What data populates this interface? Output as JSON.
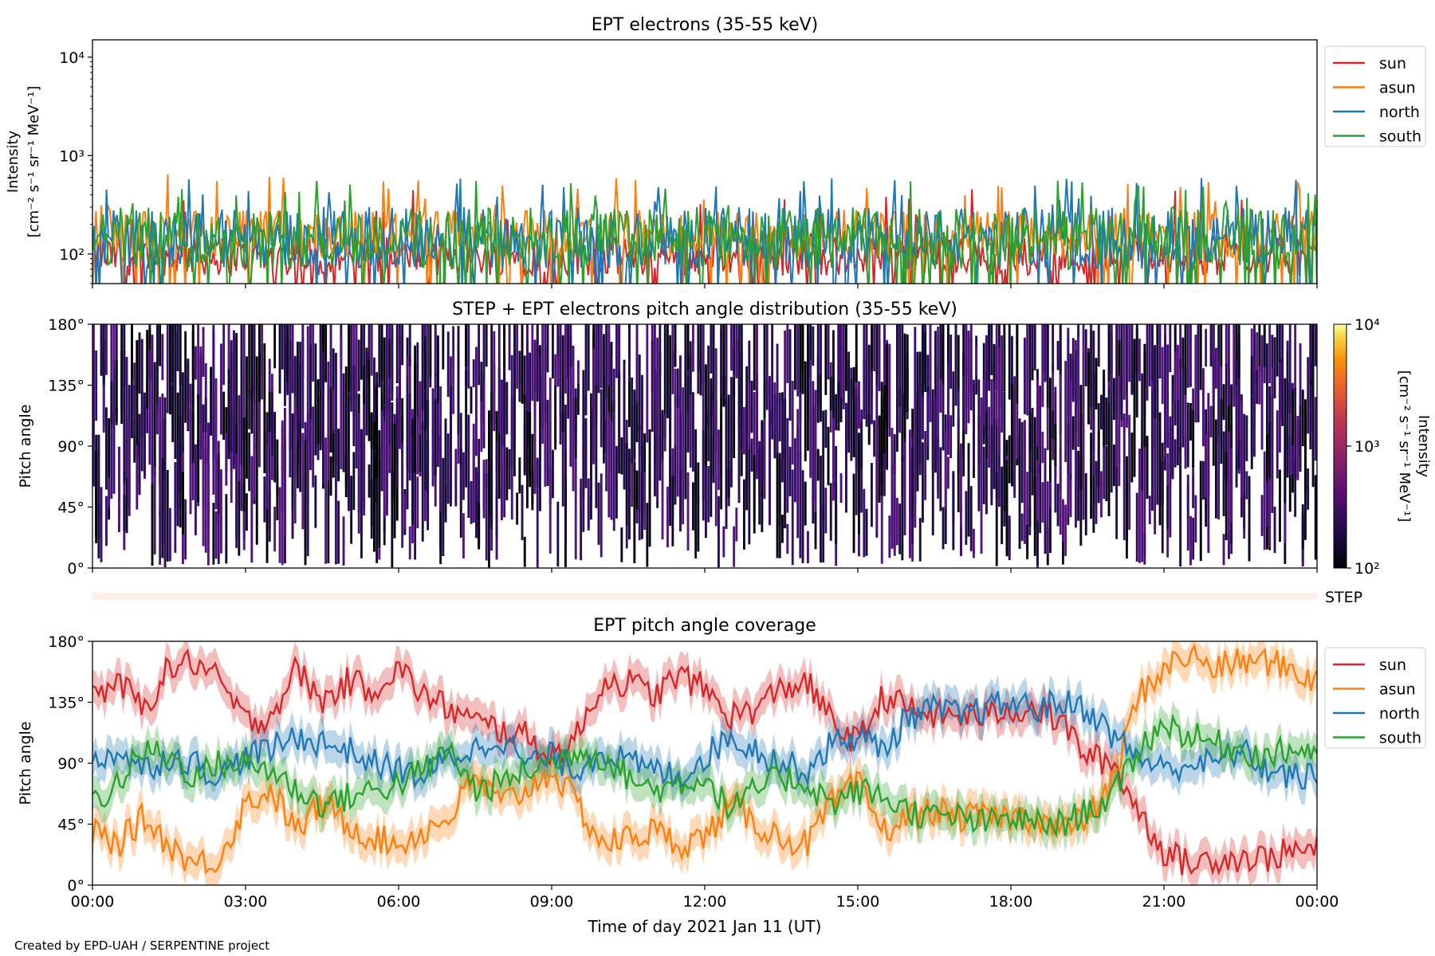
{
  "credit": "Created by EPD-UAH / SERPENTINE project",
  "colors": {
    "sun": "#d62728",
    "asun": "#ff7f0e",
    "north": "#1f77b4",
    "south": "#2ca02c"
  },
  "chart_data": [
    {
      "type": "line",
      "title": "EPT electrons (35-55 keV)",
      "ylabel": [
        "Intensity",
        "[cm⁻² s⁻¹ sr⁻¹ MeV⁻¹]"
      ],
      "yscale": "log",
      "ylim": [
        50,
        15000
      ],
      "yticks": [
        {
          "v": 100,
          "label": "10²"
        },
        {
          "v": 1000,
          "label": "10³"
        },
        {
          "v": 10000,
          "label": "10⁴"
        }
      ],
      "x_range_hours": [
        0,
        24
      ],
      "legend_placement": "outside-right-top",
      "series": [
        {
          "name": "sun",
          "key": "sun",
          "typical": [
            60,
            150
          ],
          "peak": 480
        },
        {
          "name": "asun",
          "key": "asun",
          "typical": [
            90,
            280
          ],
          "peak": 650
        },
        {
          "name": "north",
          "key": "north",
          "typical": [
            70,
            300
          ],
          "peak": 600
        },
        {
          "name": "south",
          "key": "south",
          "typical": [
            70,
            300
          ],
          "peak": 560
        }
      ]
    },
    {
      "type": "heatmap",
      "title": "STEP + EPT electrons pitch angle distribution (35-55 keV)",
      "ylabel": "Pitch angle",
      "ylim": [
        0,
        180
      ],
      "yticks": [
        {
          "v": 0,
          "label": "0°"
        },
        {
          "v": 45,
          "label": "45°"
        },
        {
          "v": 90,
          "label": "90°"
        },
        {
          "v": 135,
          "label": "135°"
        },
        {
          "v": 180,
          "label": "180°"
        }
      ],
      "x_range_hours": [
        0,
        24
      ],
      "colorbar": {
        "label": [
          "Intensity",
          "[cm⁻² s⁻¹ sr⁻¹ MeV⁻¹]"
        ],
        "scale": "log",
        "range": [
          100,
          10000
        ],
        "ticks": [
          {
            "v": 100,
            "label": "10²"
          },
          {
            "v": 1000,
            "label": "10³"
          },
          {
            "v": 10000,
            "label": "10⁴"
          }
        ],
        "colormap": "inferno"
      },
      "typical_intensity": [
        100,
        250
      ]
    },
    {
      "type": "bar",
      "label": "STEP"
    },
    {
      "type": "line",
      "title": "EPT pitch angle coverage",
      "ylabel": "Pitch angle",
      "ylim": [
        0,
        180
      ],
      "yticks": [
        {
          "v": 0,
          "label": "0°"
        },
        {
          "v": 45,
          "label": "45°"
        },
        {
          "v": 90,
          "label": "90°"
        },
        {
          "v": 135,
          "label": "135°"
        },
        {
          "v": 180,
          "label": "180°"
        }
      ],
      "xlabel": "Time of day 2021 Jan 11 (UT)",
      "xticks": [
        {
          "h": 0,
          "label": "00:00"
        },
        {
          "h": 3,
          "label": "03:00"
        },
        {
          "h": 6,
          "label": "06:00"
        },
        {
          "h": 9,
          "label": "09:00"
        },
        {
          "h": 12,
          "label": "12:00"
        },
        {
          "h": 15,
          "label": "15:00"
        },
        {
          "h": 18,
          "label": "18:00"
        },
        {
          "h": 21,
          "label": "21:00"
        },
        {
          "h": 24,
          "label": "00:00"
        }
      ],
      "legend_placement": "outside-right-top",
      "band_halfwidth_deg": 12,
      "series": [
        {
          "name": "sun",
          "key": "sun",
          "x": [
            0,
            0.5,
            1,
            1.5,
            2,
            2.5,
            3,
            3.5,
            4,
            4.5,
            5,
            5.5,
            6,
            6.5,
            7,
            7.5,
            8,
            8.5,
            9,
            9.5,
            10,
            10.5,
            11,
            11.5,
            12,
            12.5,
            13,
            13.5,
            14,
            14.5,
            15,
            15.5,
            16,
            16.5,
            17,
            17.5,
            18,
            18.5,
            19,
            19.5,
            20,
            20.5,
            21,
            21.5,
            22,
            22.5,
            23,
            23.5,
            24
          ],
          "y": [
            140,
            150,
            130,
            160,
            165,
            150,
            120,
            125,
            160,
            135,
            150,
            145,
            160,
            140,
            130,
            120,
            115,
            110,
            95,
            110,
            150,
            150,
            140,
            155,
            145,
            125,
            130,
            145,
            150,
            120,
            105,
            140,
            130,
            125,
            125,
            125,
            130,
            130,
            120,
            95,
            90,
            55,
            25,
            15,
            20,
            20,
            20,
            25,
            25
          ]
        },
        {
          "name": "asun",
          "key": "asun",
          "x": [
            0,
            0.5,
            1,
            1.5,
            2,
            2.5,
            3,
            3.5,
            4,
            4.5,
            5,
            5.5,
            6,
            6.5,
            7,
            7.5,
            8,
            8.5,
            9,
            9.5,
            10,
            10.5,
            11,
            11.5,
            12,
            12.5,
            13,
            13.5,
            14,
            14.5,
            15,
            15.5,
            16,
            16.5,
            17,
            17.5,
            18,
            18.5,
            19,
            19.5,
            20,
            20.5,
            21,
            21.5,
            22,
            22.5,
            23,
            23.5,
            24
          ],
          "y": [
            40,
            30,
            50,
            30,
            15,
            20,
            60,
            70,
            40,
            60,
            45,
            35,
            30,
            40,
            50,
            80,
            60,
            70,
            85,
            60,
            30,
            35,
            40,
            30,
            35,
            60,
            45,
            35,
            30,
            60,
            75,
            40,
            50,
            55,
            50,
            50,
            50,
            50,
            40,
            50,
            75,
            140,
            160,
            170,
            160,
            165,
            165,
            160,
            150
          ]
        },
        {
          "name": "north",
          "key": "north",
          "x": [
            0,
            0.5,
            1,
            1.5,
            2,
            2.5,
            3,
            3.5,
            4,
            4.5,
            5,
            5.5,
            6,
            6.5,
            7,
            7.5,
            8,
            8.5,
            9,
            9.5,
            10,
            10.5,
            11,
            11.5,
            12,
            12.5,
            13,
            13.5,
            14,
            14.5,
            15,
            15.5,
            16,
            16.5,
            17,
            17.5,
            18,
            18.5,
            19,
            19.5,
            20,
            20.5,
            21,
            21.5,
            22,
            22.5,
            23,
            23.5,
            24
          ],
          "y": [
            90,
            100,
            85,
            95,
            90,
            80,
            95,
            100,
            110,
            105,
            100,
            90,
            85,
            80,
            95,
            100,
            110,
            90,
            95,
            85,
            100,
            90,
            85,
            80,
            95,
            110,
            100,
            90,
            85,
            105,
            110,
            100,
            125,
            130,
            125,
            130,
            135,
            130,
            135,
            130,
            110,
            95,
            85,
            90,
            90,
            100,
            85,
            80,
            80
          ]
        },
        {
          "name": "south",
          "key": "south",
          "x": [
            0,
            0.5,
            1,
            1.5,
            2,
            2.5,
            3,
            3.5,
            4,
            4.5,
            5,
            5.5,
            6,
            6.5,
            7,
            7.5,
            8,
            8.5,
            9,
            9.5,
            10,
            10.5,
            11,
            11.5,
            12,
            12.5,
            13,
            13.5,
            14,
            14.5,
            15,
            15.5,
            16,
            16.5,
            17,
            17.5,
            18,
            18.5,
            19,
            19.5,
            20,
            20.5,
            21,
            21.5,
            22,
            22.5,
            23,
            23.5,
            24
          ],
          "y": [
            60,
            75,
            100,
            95,
            80,
            90,
            90,
            85,
            70,
            60,
            65,
            70,
            75,
            85,
            100,
            70,
            75,
            85,
            90,
            100,
            95,
            80,
            70,
            75,
            80,
            55,
            70,
            80,
            75,
            60,
            70,
            65,
            55,
            50,
            50,
            45,
            50,
            45,
            45,
            55,
            65,
            100,
            120,
            110,
            105,
            100,
            95,
            100,
            100
          ]
        }
      ]
    }
  ]
}
